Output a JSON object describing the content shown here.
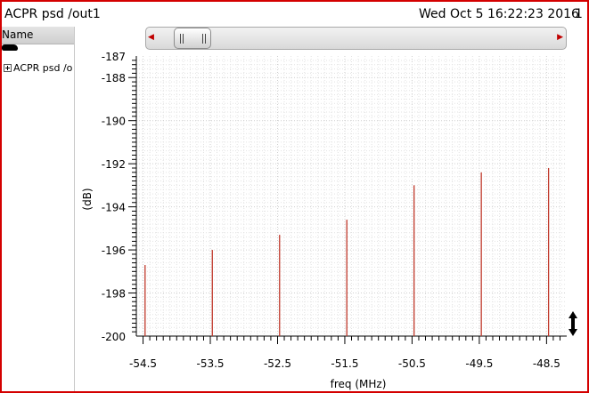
{
  "window": {
    "title": "ACPR psd /out1",
    "timestamp": "Wed Oct 5 16:22:23 2016",
    "page_number": "1"
  },
  "browser_panel": {
    "header_label": "Name",
    "items": [
      {
        "label": "ACPR psd /o"
      }
    ]
  },
  "colors": {
    "frame_border": "#d40000",
    "trace": "#c0392b",
    "grid_major": "#cfcfcf",
    "grid_minor": "#e3e3e3"
  },
  "icons": {
    "expand": "expand-plus-icon",
    "scroll_left": "scroll-left-arrow-icon",
    "scroll_right": "scroll-right-arrow-icon",
    "resize": "vertical-resize-icon"
  },
  "chart_data": {
    "type": "bar",
    "xlabel": "freq (MHz)",
    "ylabel": "(dB)",
    "xlim": [
      -54.6,
      -48.2
    ],
    "ylim": [
      -200,
      -187
    ],
    "x_ticks": [
      "-54.5",
      "-53.5",
      "-52.5",
      "-51.5",
      "-50.5",
      "-49.5",
      "-48.5"
    ],
    "x_tick_values": [
      -54.5,
      -53.5,
      -52.5,
      -51.5,
      -50.5,
      -49.5,
      -48.5
    ],
    "y_ticks": [
      "-187",
      "-188",
      "-190",
      "-192",
      "-194",
      "-196",
      "-198",
      "-200"
    ],
    "y_tick_values": [
      -187,
      -188,
      -190,
      -192,
      -194,
      -196,
      -198,
      -200
    ],
    "grid": true,
    "series": [
      {
        "x": [
          -54.47,
          -53.47,
          -52.47,
          -51.47,
          -50.47,
          -49.47,
          -48.47
        ],
        "values": [
          -196.7,
          -196.0,
          -195.3,
          -194.6,
          -193.0,
          -192.4,
          -192.2
        ]
      }
    ]
  }
}
